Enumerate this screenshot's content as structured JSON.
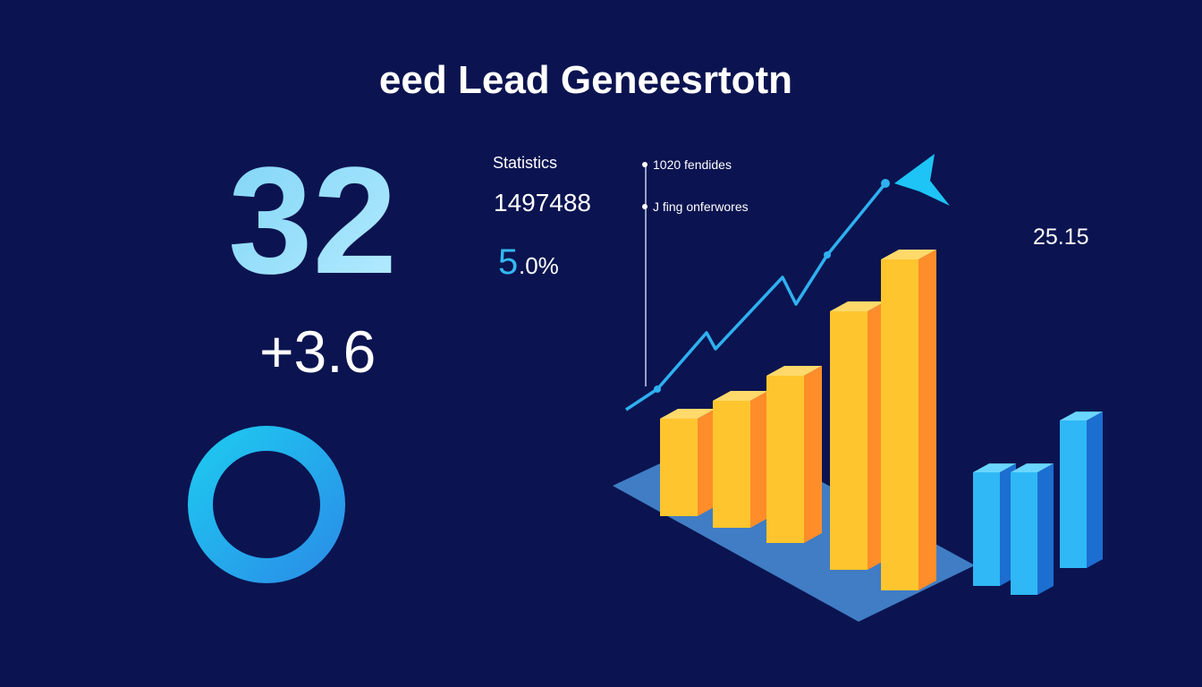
{
  "header": {
    "title": "eed Lead Geneesrtotn"
  },
  "kpis": {
    "main": "32",
    "change": "+3.6"
  },
  "stats": {
    "label": "Statistics",
    "total": "1497488",
    "rate_main": "5",
    "rate_rest": ".0%"
  },
  "legend": {
    "items": [
      "1020 fendides",
      "J fing onferwores"
    ]
  },
  "side_value": "25.15"
}
